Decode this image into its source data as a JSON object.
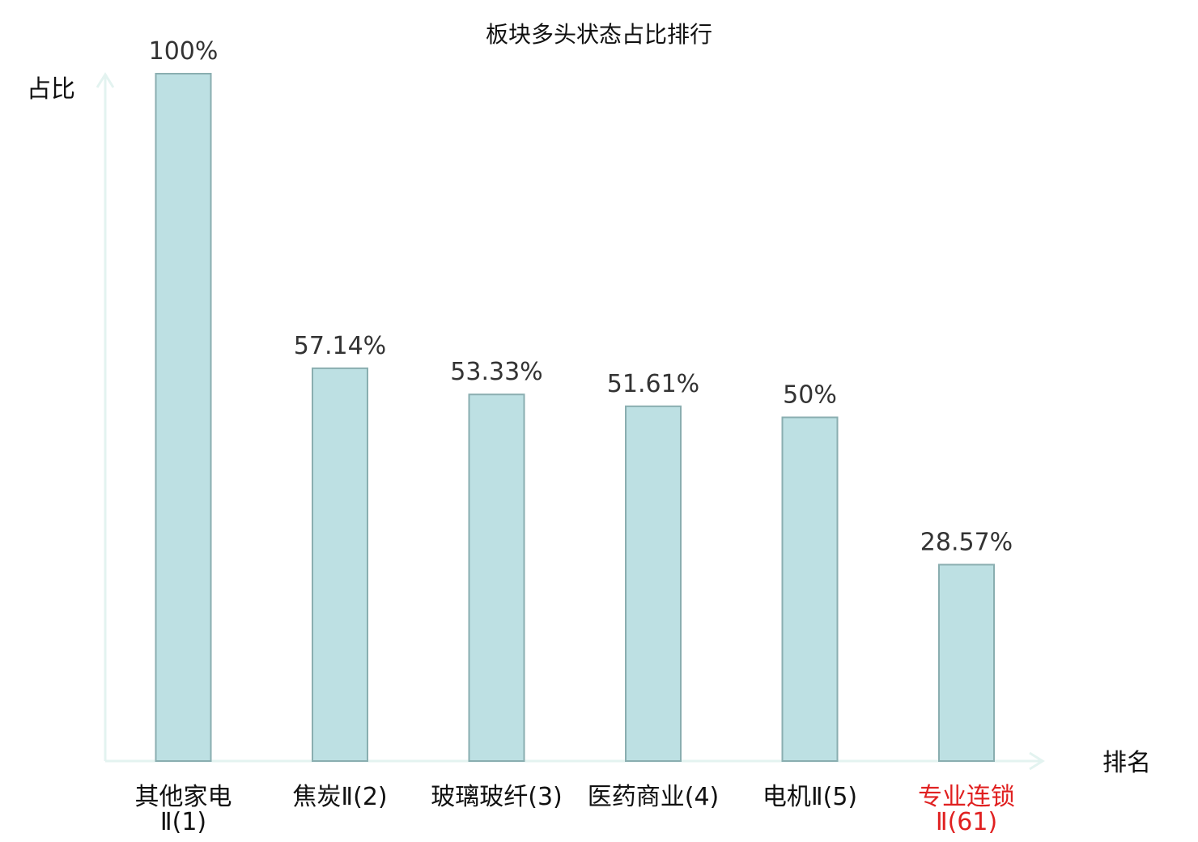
{
  "chart_data": {
    "type": "bar",
    "title": "板块多头状态占比排行",
    "ylabel": "占比",
    "xlabel": "排名",
    "ylim": [
      0,
      100
    ],
    "grid": false,
    "categories": [
      {
        "name": "其他家电",
        "rank": "Ⅱ(1)",
        "line1": "其他家电",
        "line2": "Ⅱ(1)",
        "highlight": false
      },
      {
        "name": "焦炭Ⅱ",
        "rank": "(2)",
        "line1": "焦炭Ⅱ(2)",
        "line2": "",
        "highlight": false
      },
      {
        "name": "玻璃玻纤",
        "rank": "(3)",
        "line1": "玻璃玻纤(3)",
        "line2": "",
        "highlight": false
      },
      {
        "name": "医药商业",
        "rank": "(4)",
        "line1": "医药商业(4)",
        "line2": "",
        "highlight": false
      },
      {
        "name": "电机Ⅱ",
        "rank": "(5)",
        "line1": "电机Ⅱ(5)",
        "line2": "",
        "highlight": false
      },
      {
        "name": "专业连锁",
        "rank": "Ⅱ(61)",
        "line1": "专业连锁",
        "line2": "Ⅱ(61)",
        "highlight": true
      }
    ],
    "values": [
      100,
      57.14,
      53.33,
      51.61,
      50,
      28.57
    ],
    "value_labels": [
      "100%",
      "57.14%",
      "53.33%",
      "51.61%",
      "50%",
      "28.57%"
    ],
    "colors": {
      "bar_fill": "#bde0e3",
      "bar_stroke": "#8aaeb0",
      "axis": "#e3f3f0",
      "highlight": "#e02020",
      "value_text": "#333333",
      "text": "#111111"
    }
  }
}
